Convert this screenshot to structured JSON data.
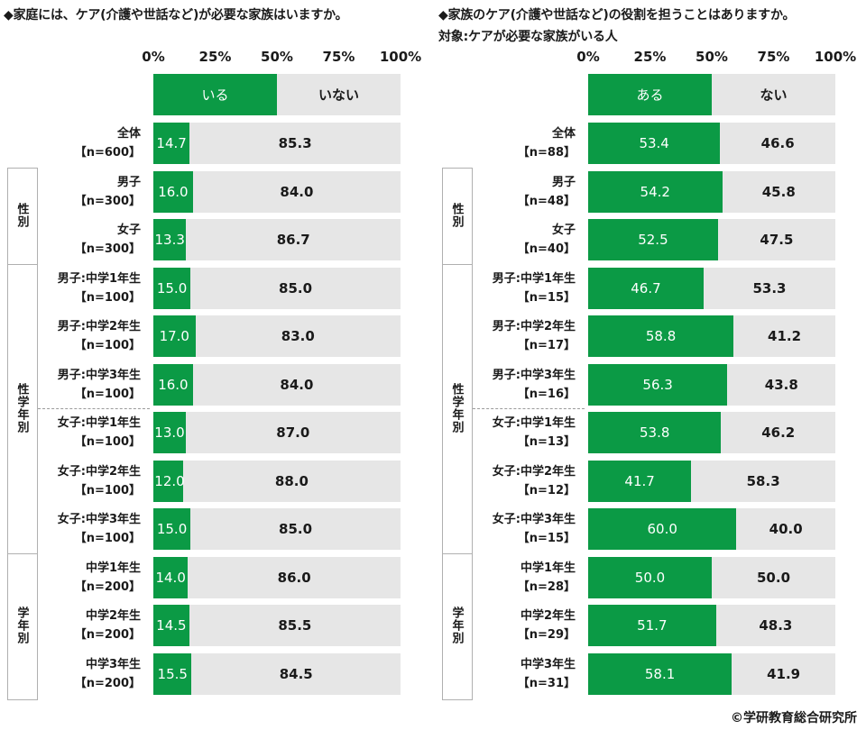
{
  "left_chart": {
    "title": "◆家庭には、ケア(介護や世話など)が必要な家族はいますか。",
    "subtitle": "",
    "ticks": [
      "0%",
      "25%",
      "50%",
      "75%",
      "100%"
    ],
    "legend": {
      "a": "いる",
      "b": "いない",
      "a_value": 50
    },
    "chart_data": {
      "type": "bar",
      "stacked": true,
      "orientation": "horizontal",
      "xlim": [
        0,
        100
      ],
      "series": [
        {
          "name": "いる",
          "values": [
            14.7,
            16.0,
            13.3,
            15.0,
            17.0,
            16.0,
            13.0,
            12.0,
            15.0,
            14.0,
            14.5,
            15.5
          ]
        },
        {
          "name": "いない",
          "values": [
            85.3,
            84.0,
            86.7,
            85.0,
            83.0,
            84.0,
            87.0,
            88.0,
            85.0,
            86.0,
            85.5,
            84.5
          ]
        }
      ],
      "categories": [
        [
          "全体",
          "【n=600】"
        ],
        [
          "男子",
          "【n=300】"
        ],
        [
          "女子",
          "【n=300】"
        ],
        [
          "男子:中学1年生",
          "【n=100】"
        ],
        [
          "男子:中学2年生",
          "【n=100】"
        ],
        [
          "男子:中学3年生",
          "【n=100】"
        ],
        [
          "女子:中学1年生",
          "【n=100】"
        ],
        [
          "女子:中学2年生",
          "【n=100】"
        ],
        [
          "女子:中学3年生",
          "【n=100】"
        ],
        [
          "中学1年生",
          "【n=200】"
        ],
        [
          "中学2年生",
          "【n=200】"
        ],
        [
          "中学3年生",
          "【n=200】"
        ]
      ],
      "a_labels": [
        "14.7",
        "16.0",
        "13.3",
        "15.0",
        "17.0",
        "16.0",
        "13.0",
        "12.0",
        "15.0",
        "14.0",
        "14.5",
        "15.5"
      ],
      "b_labels": [
        "85.3",
        "84.0",
        "86.7",
        "85.0",
        "83.0",
        "84.0",
        "87.0",
        "88.0",
        "85.0",
        "86.0",
        "85.5",
        "84.5"
      ]
    }
  },
  "right_chart": {
    "title": "◆家族のケア(介護や世話など)の役割を担うことはありますか。",
    "subtitle": "対象:ケアが必要な家族がいる人",
    "ticks": [
      "0%",
      "25%",
      "50%",
      "75%",
      "100%"
    ],
    "legend": {
      "a": "ある",
      "b": "ない",
      "a_value": 50
    },
    "chart_data": {
      "type": "bar",
      "stacked": true,
      "orientation": "horizontal",
      "xlim": [
        0,
        100
      ],
      "series": [
        {
          "name": "ある",
          "values": [
            53.4,
            54.2,
            52.5,
            46.7,
            58.8,
            56.3,
            53.8,
            41.7,
            60.0,
            50.0,
            51.7,
            58.1
          ]
        },
        {
          "name": "ない",
          "values": [
            46.6,
            45.8,
            47.5,
            53.3,
            41.2,
            43.8,
            46.2,
            58.3,
            40.0,
            50.0,
            48.3,
            41.9
          ]
        }
      ],
      "categories": [
        [
          "全体",
          "【n=88】"
        ],
        [
          "男子",
          "【n=48】"
        ],
        [
          "女子",
          "【n=40】"
        ],
        [
          "男子:中学1年生",
          "【n=15】"
        ],
        [
          "男子:中学2年生",
          "【n=17】"
        ],
        [
          "男子:中学3年生",
          "【n=16】"
        ],
        [
          "女子:中学1年生",
          "【n=13】"
        ],
        [
          "女子:中学2年生",
          "【n=12】"
        ],
        [
          "女子:中学3年生",
          "【n=15】"
        ],
        [
          "中学1年生",
          "【n=28】"
        ],
        [
          "中学2年生",
          "【n=29】"
        ],
        [
          "中学3年生",
          "【n=31】"
        ]
      ],
      "a_labels": [
        "53.4",
        "54.2",
        "52.5",
        "46.7",
        "58.8",
        "56.3",
        "53.8",
        "41.7",
        "60.0",
        "50.0",
        "51.7",
        "58.1"
      ],
      "b_labels": [
        "46.6",
        "45.8",
        "47.5",
        "53.3",
        "41.2",
        "43.8",
        "46.2",
        "58.3",
        "40.0",
        "50.0",
        "48.3",
        "41.9"
      ]
    }
  },
  "groups": [
    {
      "label": "性別"
    },
    {
      "label": "性学年別"
    },
    {
      "label": "学年別"
    }
  ],
  "colors": {
    "primary": "#0b9a45",
    "secondary": "#e6e6e6"
  },
  "copyright": "©学研教育総合研究所"
}
